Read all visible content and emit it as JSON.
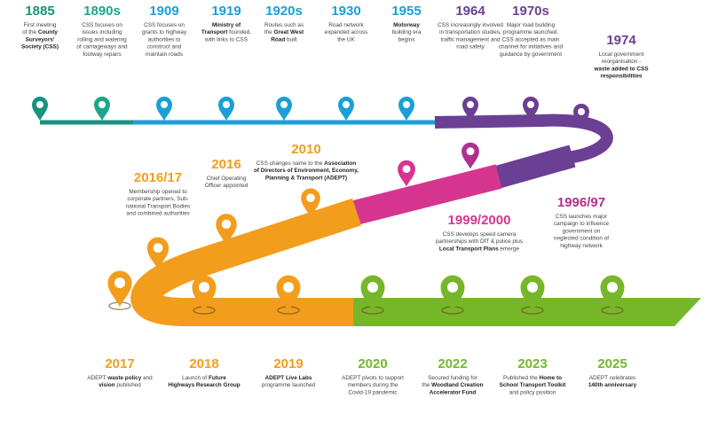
{
  "events": [
    {
      "year": "1885",
      "color": "#17937f",
      "lines": [
        [
          "First meeting"
        ],
        [
          "of the ",
          {
            "bold": "County"
          }
        ],
        [
          {
            "bold": "Surveyors'"
          }
        ],
        [
          {
            "bold": "Society (CSS)"
          }
        ]
      ]
    },
    {
      "year": "1890s",
      "color": "#1ea58c",
      "lines": [
        [
          "CSS focuses on"
        ],
        [
          "issues including"
        ],
        [
          "rolling and watering"
        ],
        [
          "of carriageways and"
        ],
        [
          "footway repairs"
        ]
      ]
    },
    {
      "year": "1909",
      "color": "#1b9fd6",
      "lines": [
        [
          "CSS focuses on"
        ],
        [
          "grants to highway"
        ],
        [
          "authorities to"
        ],
        [
          "construct and"
        ],
        [
          "maintain roads"
        ]
      ]
    },
    {
      "year": "1919",
      "color": "#1b9fd6",
      "lines": [
        [
          {
            "bold": "Ministry of"
          }
        ],
        [
          {
            "bold": "Transport"
          },
          " founded,"
        ],
        [
          "with links to CSS"
        ]
      ]
    },
    {
      "year": "1920s",
      "color": "#1b9fd6",
      "lines": [
        [
          "Routes such as"
        ],
        [
          "the ",
          {
            "bold": "Great West"
          }
        ],
        [
          {
            "bold": "Road"
          },
          " built"
        ]
      ]
    },
    {
      "year": "1930",
      "color": "#1b9fd6",
      "lines": [
        [
          "Road network"
        ],
        [
          "expanded across"
        ],
        [
          "the UK"
        ]
      ]
    },
    {
      "year": "1955",
      "color": "#1b9fd6",
      "lines": [
        [
          {
            "bold": "Motorway"
          }
        ],
        [
          "building era"
        ],
        [
          "begins"
        ]
      ]
    },
    {
      "year": "1964",
      "color": "#6b3f93",
      "lines": [
        [
          "CSS increasingly involved"
        ],
        [
          "in transportation studies,"
        ],
        [
          "traffic management and"
        ],
        [
          "road safety"
        ]
      ]
    },
    {
      "year": "1970s",
      "color": "#6b3f93",
      "lines": [
        [
          "Major road building"
        ],
        [
          "programme launched."
        ],
        [
          "CSS accepted as main"
        ],
        [
          "channel for initiatives and"
        ],
        [
          "guidance by government"
        ]
      ]
    },
    {
      "year": "1974",
      "color": "#6b3f93",
      "lines": [
        [
          "Local government"
        ],
        [
          "reorganisation -"
        ],
        [
          {
            "bold": "waste added to CSS"
          }
        ],
        [
          {
            "bold": "responsibilities"
          }
        ]
      ]
    },
    {
      "year": "1996/97",
      "color": "#b0308f",
      "lines": [
        [
          "CSS launches major"
        ],
        [
          "campaign to influence"
        ],
        [
          "government on"
        ],
        [
          "neglected condition of"
        ],
        [
          "highway network"
        ]
      ]
    },
    {
      "year": "1999/2000",
      "color": "#d6358f",
      "lines": [
        [
          "CSS develops speed camera"
        ],
        [
          "partnerships with DfT & police plus"
        ],
        [
          {
            "bold": "Local Transport Plans"
          },
          " emerge"
        ]
      ]
    },
    {
      "year": "2010",
      "color": "#f29d1c",
      "lines": [
        [
          "CSS changes name to the ",
          {
            "bold": "Association"
          }
        ],
        [
          {
            "bold": "of Directors of Environment, Economy,"
          }
        ],
        [
          {
            "bold": "Planning & Transport (ADEPT)"
          }
        ]
      ]
    },
    {
      "year": "2016",
      "color": "#f29d1c",
      "lines": [
        [
          "Chief Operating"
        ],
        [
          "Officer appointed"
        ]
      ]
    },
    {
      "year": "2016/17",
      "color": "#f29d1c",
      "lines": [
        [
          "Membership opened to"
        ],
        [
          "corporate partners, Sub-"
        ],
        [
          "national Transport Bodies"
        ],
        [
          "and combined authorities"
        ]
      ]
    },
    {
      "year": "2017",
      "color": "#f29d1c",
      "lines": [
        [
          "ADEPT ",
          {
            "bold": "waste policy"
          },
          " and"
        ],
        [
          {
            "bold": "vision"
          },
          " published"
        ]
      ]
    },
    {
      "year": "2018",
      "color": "#f29d1c",
      "lines": [
        [
          "Launch of ",
          {
            "bold": "Future"
          }
        ],
        [
          {
            "bold": "Highways Research Group"
          }
        ]
      ]
    },
    {
      "year": "2019",
      "color": "#f29d1c",
      "lines": [
        [
          {
            "bold": "ADEPT Live Labs"
          }
        ],
        [
          "programme launched"
        ]
      ]
    },
    {
      "year": "2020",
      "color": "#76b72a",
      "lines": [
        [
          "ADEPT pivots to support"
        ],
        [
          "members during the"
        ],
        [
          "Covid-19 pandemic"
        ]
      ]
    },
    {
      "year": "2022",
      "color": "#76b72a",
      "lines": [
        [
          "Secured funding for"
        ],
        [
          "the ",
          {
            "bold": "Woodland Creation"
          }
        ],
        [
          {
            "bold": "Accelerator Fund"
          }
        ]
      ]
    },
    {
      "year": "2023",
      "color": "#76b72a",
      "lines": [
        [
          "Published the ",
          {
            "bold": "Home to"
          }
        ],
        [
          {
            "bold": "School Transport Toolkit"
          }
        ],
        [
          "and policy position"
        ]
      ]
    },
    {
      "year": "2025",
      "color": "#76b72a",
      "lines": [
        [
          "ADEPT celebrates"
        ],
        [
          {
            "bold": "140th anniversary"
          }
        ]
      ]
    }
  ]
}
